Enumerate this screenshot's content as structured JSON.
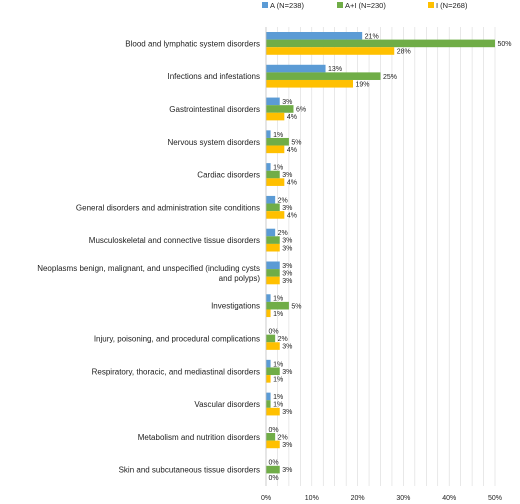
{
  "chart_data": {
    "type": "bar",
    "orientation": "horizontal",
    "legend_position": "top-right",
    "grid": true,
    "xlim": [
      0,
      50
    ],
    "xticks": [
      0,
      5,
      10,
      15,
      20,
      25,
      30,
      35,
      40,
      45,
      50
    ],
    "xtick_labels": [
      "0%",
      "",
      "10%",
      "",
      "20%",
      "",
      "30%",
      "",
      "40%",
      "",
      "50%"
    ],
    "categories": [
      [
        "Blood and lymphatic system disorders"
      ],
      [
        "Infections and infestations"
      ],
      [
        "Gastrointestinal disorders"
      ],
      [
        "Nervous system disorders"
      ],
      [
        "Cardiac disorders"
      ],
      [
        "General disorders and administration site conditions"
      ],
      [
        "Musculoskeletal and connective tissue disorders"
      ],
      [
        "Neoplasms benign, malignant, and unspecified (including cysts",
        "and polyps)"
      ],
      [
        "Investigations"
      ],
      [
        "Injury, poisoning, and procedural complications"
      ],
      [
        "Respiratory, thoracic, and mediastinal disorders"
      ],
      [
        "Vascular disorders"
      ],
      [
        "Metabolism and nutrition disorders"
      ],
      [
        "Skin and subcutaneous tissue disorders"
      ]
    ],
    "series": [
      {
        "name": "A (N=238)",
        "color": "#5b9bd5",
        "values": [
          21,
          13,
          3,
          1,
          1,
          2,
          2,
          3,
          1,
          0,
          1,
          1,
          0,
          0
        ]
      },
      {
        "name": "A+I (N=230)",
        "color": "#70ad47",
        "values": [
          50,
          25,
          6,
          5,
          3,
          3,
          3,
          3,
          5,
          2,
          3,
          1,
          2,
          3
        ]
      },
      {
        "name": "I (N=268)",
        "color": "#ffc000",
        "values": [
          28,
          19,
          4,
          4,
          4,
          4,
          3,
          3,
          1,
          3,
          1,
          3,
          3,
          0
        ]
      }
    ],
    "value_suffix": "%"
  }
}
